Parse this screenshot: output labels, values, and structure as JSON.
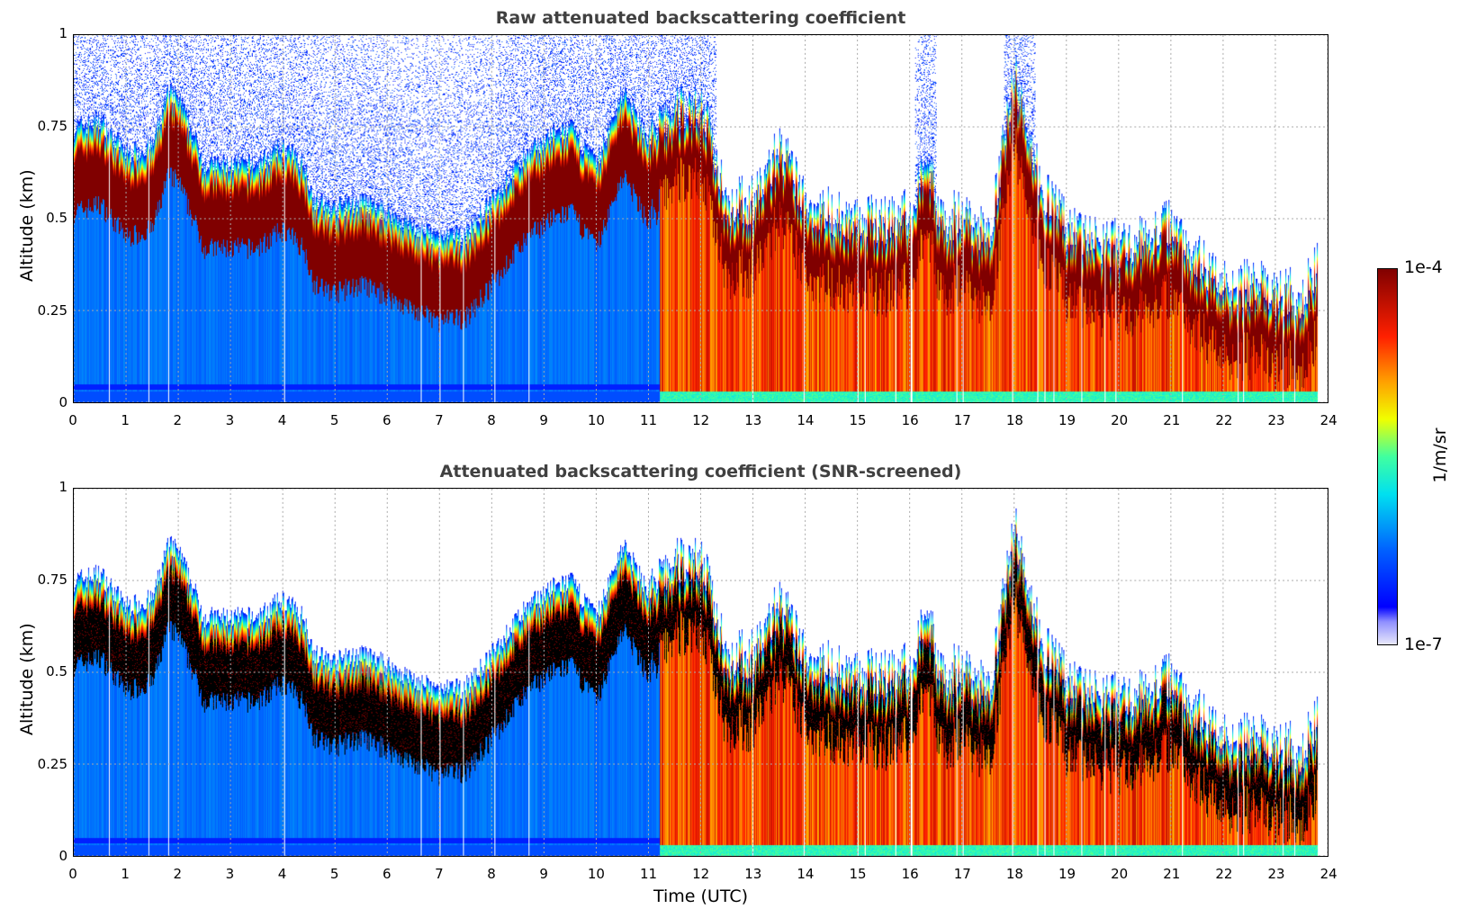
{
  "chart_data": [
    {
      "type": "heatmap",
      "title": "Raw attenuated backscattering coefficient",
      "xlabel": "",
      "ylabel": "Altitude (km)",
      "xlim": [
        0,
        24
      ],
      "ylim": [
        0,
        1
      ],
      "xticks": [
        "0",
        "1",
        "2",
        "3",
        "4",
        "5",
        "6",
        "7",
        "8",
        "9",
        "10",
        "11",
        "12",
        "13",
        "14",
        "15",
        "16",
        "17",
        "18",
        "19",
        "20",
        "21",
        "22",
        "23",
        "24"
      ],
      "yticks": [
        "0",
        "0.25",
        "0.5",
        "0.75",
        "1"
      ],
      "grid": true,
      "screened": false
    },
    {
      "type": "heatmap",
      "title": "Attenuated backscattering coefficient (SNR-screened)",
      "xlabel": "Time (UTC)",
      "ylabel": "Altitude (km)",
      "xlim": [
        0,
        24
      ],
      "ylim": [
        0,
        1
      ],
      "xticks": [
        "0",
        "1",
        "2",
        "3",
        "4",
        "5",
        "6",
        "7",
        "8",
        "9",
        "10",
        "11",
        "12",
        "13",
        "14",
        "15",
        "16",
        "17",
        "18",
        "19",
        "20",
        "21",
        "22",
        "23",
        "24"
      ],
      "yticks": [
        "0",
        "0.25",
        "0.5",
        "0.75",
        "1"
      ],
      "grid": true,
      "screened": true
    }
  ],
  "layer_top_km": {
    "time_utc": [
      0,
      0.5,
      1,
      1.5,
      1.8,
      2,
      2.5,
      3,
      3.5,
      4,
      4.4,
      4.6,
      5,
      5.5,
      6,
      6.5,
      7,
      7.5,
      8,
      8.5,
      9,
      9.5,
      10,
      10.5,
      11,
      11.5,
      12,
      12.5,
      13,
      13.5,
      14,
      14.5,
      15,
      15.5,
      16,
      16.3,
      16.6,
      17,
      17.5,
      18,
      18.5,
      19,
      19.5,
      20,
      20.5,
      21,
      21.5,
      22,
      22.5,
      23,
      23.5,
      23.8
    ],
    "altitude": [
      0.75,
      0.77,
      0.68,
      0.7,
      0.85,
      0.83,
      0.65,
      0.65,
      0.65,
      0.7,
      0.65,
      0.55,
      0.53,
      0.55,
      0.52,
      0.48,
      0.45,
      0.46,
      0.55,
      0.65,
      0.72,
      0.75,
      0.65,
      0.85,
      0.72,
      0.8,
      0.82,
      0.55,
      0.55,
      0.7,
      0.55,
      0.52,
      0.5,
      0.5,
      0.52,
      0.68,
      0.5,
      0.52,
      0.45,
      0.9,
      0.6,
      0.48,
      0.45,
      0.43,
      0.45,
      0.5,
      0.4,
      0.33,
      0.33,
      0.3,
      0.3,
      0.38
    ]
  },
  "data_end_utc": 23.8,
  "colorbar": {
    "min_label": "1e-7",
    "max_label": "1e-4",
    "unit": "1/m/sr",
    "min": 1e-07,
    "max": 0.0001,
    "scale": "log"
  }
}
